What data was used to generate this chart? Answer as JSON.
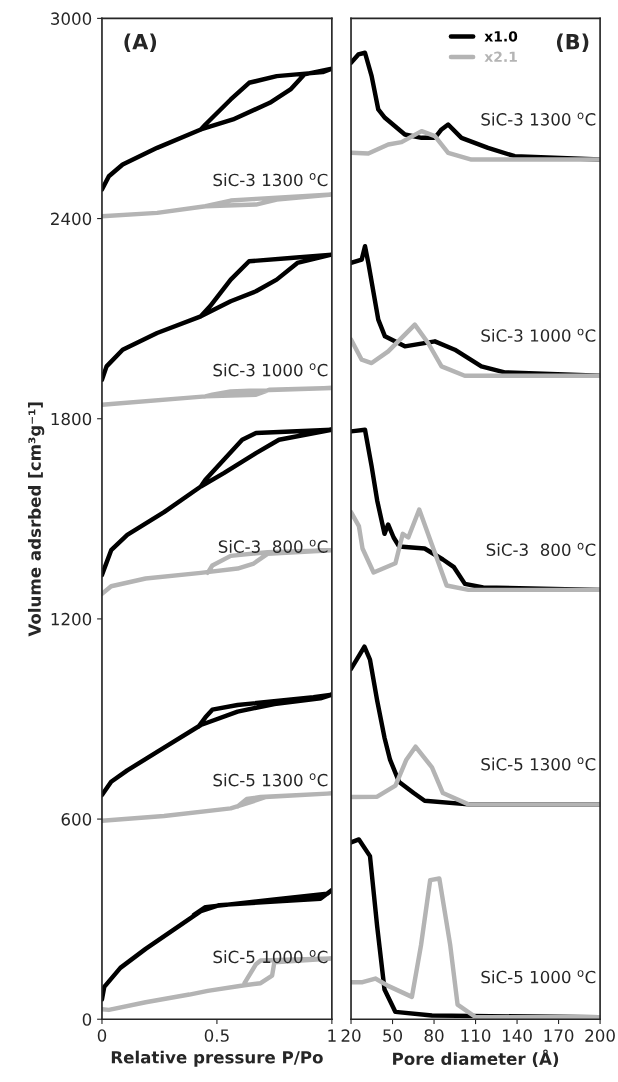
{
  "chart_data": [
    {
      "type": "line",
      "title": "(A)",
      "xlabel": "Relative pressure P/Po",
      "ylabel": "Volume adsrbed [cm³g⁻¹]",
      "xlim": [
        0,
        1
      ],
      "xticks": [
        0,
        0.5,
        1
      ],
      "ylim": [
        0,
        3000
      ],
      "yticks": [
        0,
        600,
        1200,
        1800,
        2400,
        3000
      ],
      "grid": false,
      "legend": false,
      "annotations": [
        "SiC-3 1300 $^{o}$C",
        "SiC-3 1000 $^{o}$C",
        "SiC-3  800 $^{o}$C",
        "SiC-5 1300 $^{o}$C",
        "SiC-5 1000 $^{o}$C"
      ],
      "series": [
        {
          "color": "#000000",
          "x": [
            0.0,
            0.03,
            0.09,
            0.24,
            0.43,
            0.57,
            0.73,
            0.82,
            0.88,
            1.0,
            0.96,
            0.76,
            0.64,
            0.56,
            0.45,
            0.43
          ],
          "values": [
            2487,
            2527,
            2562,
            2612,
            2667,
            2697,
            2747,
            2787,
            2832,
            2849,
            2839,
            2827,
            2807,
            2757,
            2682,
            2667
          ]
        },
        {
          "color": "#b4b4b4",
          "x": [
            0.0,
            0.24,
            0.45,
            0.67,
            0.76,
            1.0,
            0.67,
            0.56,
            0.5,
            0.45
          ],
          "values": [
            2407,
            2417,
            2437,
            2442,
            2457,
            2472,
            2459,
            2454,
            2445,
            2437
          ]
        },
        {
          "color": "#000000",
          "x": [
            0.0,
            0.02,
            0.09,
            0.24,
            0.43,
            0.56,
            0.67,
            0.76,
            0.85,
            1.0,
            0.82,
            0.64,
            0.56,
            0.47,
            0.43
          ],
          "values": [
            1917,
            1957,
            2007,
            2057,
            2107,
            2152,
            2182,
            2217,
            2267,
            2292,
            2282,
            2272,
            2217,
            2137,
            2107
          ]
        },
        {
          "color": "#b4b4b4",
          "x": [
            0.0,
            0.45,
            0.67,
            0.73,
            1.0,
            0.56,
            0.48,
            0.45
          ],
          "values": [
            1842,
            1867,
            1872,
            1887,
            1892,
            1882,
            1872,
            1867
          ]
        },
        {
          "color": "#000000",
          "x": [
            0.0,
            0.04,
            0.11,
            0.27,
            0.43,
            0.53,
            0.67,
            0.77,
            1.0,
            0.67,
            0.61,
            0.53,
            0.45,
            0.43
          ],
          "values": [
            1332,
            1406,
            1452,
            1520,
            1597,
            1637,
            1697,
            1737,
            1767,
            1757,
            1737,
            1677,
            1617,
            1597
          ]
        },
        {
          "color": "#b4b4b4",
          "x": [
            0.0,
            0.04,
            0.19,
            0.43,
            0.59,
            0.66,
            0.72,
            1.0,
            0.72,
            0.56,
            0.48,
            0.46
          ],
          "values": [
            1275,
            1298,
            1321,
            1338,
            1351,
            1366,
            1395,
            1406,
            1400,
            1389,
            1360,
            1338
          ]
        },
        {
          "color": "#000000",
          "x": [
            0.0,
            0.04,
            0.11,
            0.27,
            0.43,
            0.59,
            0.75,
            0.95,
            1.0,
            0.92,
            0.59,
            0.48,
            0.45,
            0.42
          ],
          "values": [
            672,
            712,
            746,
            814,
            882,
            922,
            945,
            962,
            973,
            965,
            942,
            928,
            905,
            877
          ]
        },
        {
          "color": "#b4b4b4",
          "x": [
            0.0,
            0.27,
            0.56,
            0.64,
            0.71,
            1.0,
            0.69,
            0.63,
            0.59
          ],
          "values": [
            595,
            609,
            632,
            649,
            666,
            677,
            666,
            660,
            638
          ]
        },
        {
          "color": "#000000",
          "x": [
            0.0,
            0.01,
            0.08,
            0.19,
            0.43,
            0.51,
            0.75,
            0.95,
            1.0,
            0.98,
            0.75,
            0.45,
            0.4
          ],
          "values": [
            60,
            97,
            154,
            211,
            324,
            342,
            353,
            361,
            387,
            376,
            359,
            336,
            313
          ]
        },
        {
          "color": "#b4b4b4",
          "x": [
            0.0,
            0.03,
            0.19,
            0.38,
            0.46,
            0.62,
            0.69,
            0.74,
            0.75,
            1.0,
            0.69,
            0.67,
            0.62
          ],
          "values": [
            30,
            28,
            51,
            74,
            85,
            102,
            108,
            131,
            171,
            182,
            176,
            165,
            108
          ]
        }
      ]
    },
    {
      "type": "line",
      "title": "(B)",
      "xlabel": "Pore diameter (Å)",
      "xlim": [
        20,
        200
      ],
      "xticks": [
        20,
        50,
        80,
        110,
        140,
        170,
        200
      ],
      "ylim": [
        0,
        3000
      ],
      "tick_labels": "x",
      "grid": false,
      "legend": "top right",
      "annotations": [
        "SiC-3 1300 $^{o}$C",
        "SiC-3 1000 $^{o}$C",
        "SiC-3  800 $^{o}$C",
        "SiC-5 1300 $^{o}$C",
        "SiC-5 1000 $^{o}$C"
      ],
      "series": [
        {
          "name": "x1.0",
          "color": "#000000",
          "x": [
            20,
            25.3,
            30.1,
            34.9,
            39.7,
            44.5,
            58.9,
            71,
            80.6,
            85.4,
            90.2,
            99.8,
            119,
            138.3,
            200
          ],
          "values": [
            2867,
            2892,
            2897,
            2827,
            2727,
            2702,
            2652,
            2642,
            2642,
            2667,
            2682,
            2642,
            2612,
            2587,
            2577
          ]
        },
        {
          "name": "x2.1",
          "color": "#b4b4b4",
          "x": [
            20,
            32.5,
            46.9,
            56.5,
            71,
            80.6,
            90.2,
            107,
            200
          ],
          "values": [
            2597,
            2595,
            2622,
            2629,
            2662,
            2647,
            2597,
            2577,
            2577
          ]
        },
        {
          "color": "#000000",
          "x": [
            20,
            27.7,
            30.1,
            32.5,
            39.7,
            44.5,
            58.9,
            80.6,
            95,
            114.2,
            131,
            200
          ],
          "values": [
            2267,
            2277,
            2317,
            2267,
            2097,
            2047,
            2017,
            2032,
            2007,
            1957,
            1939,
            1929
          ]
        },
        {
          "color": "#b4b4b4",
          "x": [
            20,
            27.7,
            34.9,
            46.9,
            66.1,
            75.7,
            85.4,
            102.2,
            200
          ],
          "values": [
            2037,
            1977,
            1967,
            2002,
            2082,
            2027,
            1957,
            1929,
            1929
          ]
        },
        {
          "color": "#000000",
          "x": [
            20,
            30.1,
            34.9,
            38.9,
            44.2,
            46.8,
            50.8,
            54.8,
            73.2,
            86.4,
            94.4,
            102.3,
            115.5,
            200
          ],
          "values": [
            1762,
            1767,
            1657,
            1555,
            1455,
            1483,
            1444,
            1417,
            1411,
            1378,
            1355,
            1305,
            1294,
            1287
          ]
        },
        {
          "color": "#b4b4b4",
          "x": [
            20,
            25.7,
            28.3,
            36.3,
            52.1,
            57.4,
            61.4,
            69.3,
            78.5,
            89.1,
            104.9,
            200
          ],
          "values": [
            1520,
            1478,
            1411,
            1339,
            1367,
            1455,
            1444,
            1528,
            1422,
            1300,
            1287,
            1287
          ]
        },
        {
          "color": "#000000",
          "x": [
            20,
            25.7,
            29.7,
            33.7,
            38.9,
            44.2,
            48.2,
            54.8,
            65.3,
            73.2,
            104.9,
            200
          ],
          "values": [
            1050,
            1089,
            1117,
            1078,
            955,
            844,
            778,
            711,
            678,
            655,
            644,
            644
          ]
        },
        {
          "color": "#b4b4b4",
          "x": [
            20,
            38.9,
            52.1,
            60,
            66.6,
            78.5,
            86.4,
            104.9,
            200
          ],
          "values": [
            666,
            667,
            700,
            778,
            817,
            755,
            678,
            644,
            644
          ]
        },
        {
          "color": "#000000",
          "x": [
            20,
            25.7,
            33.7,
            38.9,
            44.2,
            52.1,
            78.5,
            200
          ],
          "values": [
            530,
            539,
            489,
            278,
            89,
            22,
            11,
            6
          ]
        },
        {
          "color": "#b4b4b4",
          "x": [
            20,
            28.3,
            37.6,
            46.8,
            64,
            70.6,
            77.2,
            83.8,
            91.7,
            97,
            110.2,
            200
          ],
          "values": [
            111,
            111,
            122,
            100,
            67,
            222,
            417,
            422,
            222,
            44,
            6,
            6
          ]
        }
      ]
    }
  ]
}
